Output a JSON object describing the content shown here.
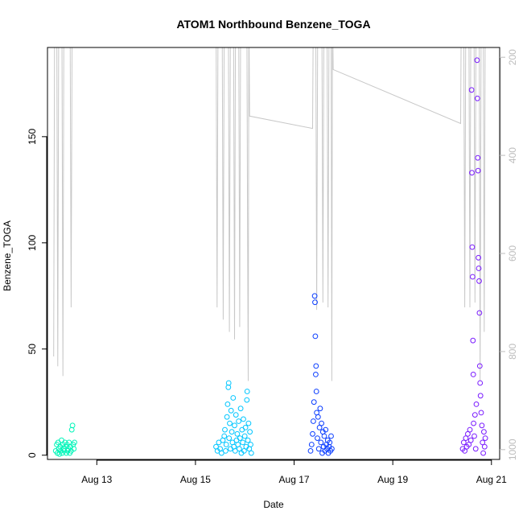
{
  "chart_data": {
    "type": "scatter",
    "title": "ATOM1 Northbound Benzene_TOGA",
    "xlabel": "Date",
    "ylabel": "Benzene_TOGA",
    "x_axis": {
      "ticks": [
        {
          "date": "2016-08-13",
          "label": "Aug 13"
        },
        {
          "date": "2016-08-15",
          "label": "Aug 15"
        },
        {
          "date": "2016-08-17",
          "label": "Aug 17"
        },
        {
          "date": "2016-08-19",
          "label": "Aug 19"
        },
        {
          "date": "2016-08-21",
          "label": "Aug 21"
        }
      ],
      "range": [
        "2016-08-12 00:00",
        "2016-08-21 04:00"
      ]
    },
    "y_axis": {
      "ticks": [
        0,
        50,
        100,
        150
      ],
      "range": [
        -2,
        192
      ]
    },
    "y2_axis": {
      "label": "",
      "ticks": [
        200,
        400,
        600,
        800,
        1000
      ],
      "range": [
        1020,
        180
      ],
      "color": "#bdbdbd",
      "reversed": true
    },
    "legend": "none",
    "grid": false,
    "colors": {
      "marker_gradient": [
        "#00f0b8",
        "#00b8ff",
        "#0030ff",
        "#8a00ff"
      ],
      "pressure_line": "#c8c8c8"
    },
    "series": [
      {
        "marker": "circle-open",
        "color": "#00f5b9",
        "points": [
          {
            "x": "2016-08-12 04:00",
            "y": 2
          },
          {
            "x": "2016-08-12 04:30",
            "y": 5
          },
          {
            "x": "2016-08-12 04:50",
            "y": 1
          },
          {
            "x": "2016-08-12 05:10",
            "y": 6
          },
          {
            "x": "2016-08-12 05:30",
            "y": 3
          },
          {
            "x": "2016-08-12 05:50",
            "y": 0.5
          },
          {
            "x": "2016-08-12 06:10",
            "y": 4
          },
          {
            "x": "2016-08-12 06:30",
            "y": 2
          },
          {
            "x": "2016-08-12 06:50",
            "y": 7
          },
          {
            "x": "2016-08-12 07:10",
            "y": 1
          },
          {
            "x": "2016-08-12 07:30",
            "y": 5
          },
          {
            "x": "2016-08-12 07:50",
            "y": 3
          },
          {
            "x": "2016-08-12 08:10",
            "y": 2
          },
          {
            "x": "2016-08-12 08:30",
            "y": 6
          },
          {
            "x": "2016-08-12 08:50",
            "y": 4
          },
          {
            "x": "2016-08-12 09:10",
            "y": 1
          },
          {
            "x": "2016-08-12 09:30",
            "y": 5
          },
          {
            "x": "2016-08-12 09:50",
            "y": 2
          },
          {
            "x": "2016-08-12 10:10",
            "y": 3
          },
          {
            "x": "2016-08-12 10:30",
            "y": 6
          },
          {
            "x": "2016-08-12 10:50",
            "y": 1
          },
          {
            "x": "2016-08-12 11:10",
            "y": 4
          },
          {
            "x": "2016-08-12 11:30",
            "y": 2
          },
          {
            "x": "2016-08-12 11:50",
            "y": 12
          },
          {
            "x": "2016-08-12 12:10",
            "y": 14
          },
          {
            "x": "2016-08-12 12:30",
            "y": 5
          },
          {
            "x": "2016-08-12 12:50",
            "y": 3
          },
          {
            "x": "2016-08-12 13:10",
            "y": 6
          }
        ]
      },
      {
        "marker": "circle-open",
        "color": "#00c6ff",
        "points": [
          {
            "x": "2016-08-15 10:00",
            "y": 4
          },
          {
            "x": "2016-08-15 10:40",
            "y": 2
          },
          {
            "x": "2016-08-15 11:20",
            "y": 6
          },
          {
            "x": "2016-08-15 12:00",
            "y": 3
          },
          {
            "x": "2016-08-15 12:40",
            "y": 1
          },
          {
            "x": "2016-08-15 13:20",
            "y": 7
          },
          {
            "x": "2016-08-15 14:00",
            "y": 9
          },
          {
            "x": "2016-08-15 14:20",
            "y": 12
          },
          {
            "x": "2016-08-15 14:40",
            "y": 2
          },
          {
            "x": "2016-08-15 15:00",
            "y": 5
          },
          {
            "x": "2016-08-15 15:20",
            "y": 18
          },
          {
            "x": "2016-08-15 15:40",
            "y": 24
          },
          {
            "x": "2016-08-15 16:00",
            "y": 32
          },
          {
            "x": "2016-08-15 16:10",
            "y": 34
          },
          {
            "x": "2016-08-15 16:20",
            "y": 8
          },
          {
            "x": "2016-08-15 16:40",
            "y": 15
          },
          {
            "x": "2016-08-15 17:00",
            "y": 3
          },
          {
            "x": "2016-08-15 17:20",
            "y": 21
          },
          {
            "x": "2016-08-15 17:40",
            "y": 11
          },
          {
            "x": "2016-08-15 18:00",
            "y": 6
          },
          {
            "x": "2016-08-15 18:20",
            "y": 27
          },
          {
            "x": "2016-08-15 18:40",
            "y": 4
          },
          {
            "x": "2016-08-15 19:00",
            "y": 14
          },
          {
            "x": "2016-08-15 19:20",
            "y": 2
          },
          {
            "x": "2016-08-15 19:40",
            "y": 19
          },
          {
            "x": "2016-08-15 20:00",
            "y": 7
          },
          {
            "x": "2016-08-15 20:20",
            "y": 10
          },
          {
            "x": "2016-08-15 20:40",
            "y": 5
          },
          {
            "x": "2016-08-15 21:00",
            "y": 16
          },
          {
            "x": "2016-08-15 21:20",
            "y": 3
          },
          {
            "x": "2016-08-15 21:40",
            "y": 8
          },
          {
            "x": "2016-08-15 22:00",
            "y": 22
          },
          {
            "x": "2016-08-15 22:20",
            "y": 1
          },
          {
            "x": "2016-08-15 22:40",
            "y": 12
          },
          {
            "x": "2016-08-15 23:00",
            "y": 6
          },
          {
            "x": "2016-08-15 23:20",
            "y": 17
          },
          {
            "x": "2016-08-15 23:40",
            "y": 2
          },
          {
            "x": "2016-08-16 00:00",
            "y": 9
          },
          {
            "x": "2016-08-16 00:20",
            "y": 13
          },
          {
            "x": "2016-08-16 00:40",
            "y": 4
          },
          {
            "x": "2016-08-16 01:00",
            "y": 26
          },
          {
            "x": "2016-08-16 01:10",
            "y": 30
          },
          {
            "x": "2016-08-16 01:30",
            "y": 7
          },
          {
            "x": "2016-08-16 01:50",
            "y": 15
          },
          {
            "x": "2016-08-16 02:10",
            "y": 3
          },
          {
            "x": "2016-08-16 02:30",
            "y": 11
          },
          {
            "x": "2016-08-16 02:50",
            "y": 5
          },
          {
            "x": "2016-08-16 03:10",
            "y": 1
          }
        ]
      },
      {
        "marker": "circle-open",
        "color": "#0a3dff",
        "points": [
          {
            "x": "2016-08-17 08:00",
            "y": 2
          },
          {
            "x": "2016-08-17 08:30",
            "y": 5
          },
          {
            "x": "2016-08-17 09:00",
            "y": 10
          },
          {
            "x": "2016-08-17 09:20",
            "y": 16
          },
          {
            "x": "2016-08-17 09:40",
            "y": 25
          },
          {
            "x": "2016-08-17 10:00",
            "y": 75
          },
          {
            "x": "2016-08-17 10:10",
            "y": 72
          },
          {
            "x": "2016-08-17 10:20",
            "y": 56
          },
          {
            "x": "2016-08-17 10:30",
            "y": 38
          },
          {
            "x": "2016-08-17 10:40",
            "y": 42
          },
          {
            "x": "2016-08-17 10:50",
            "y": 30
          },
          {
            "x": "2016-08-17 11:00",
            "y": 20
          },
          {
            "x": "2016-08-17 11:20",
            "y": 8
          },
          {
            "x": "2016-08-17 11:40",
            "y": 18
          },
          {
            "x": "2016-08-17 12:00",
            "y": 3
          },
          {
            "x": "2016-08-17 12:20",
            "y": 13
          },
          {
            "x": "2016-08-17 12:40",
            "y": 22
          },
          {
            "x": "2016-08-17 13:00",
            "y": 6
          },
          {
            "x": "2016-08-17 13:20",
            "y": 15
          },
          {
            "x": "2016-08-17 13:40",
            "y": 1
          },
          {
            "x": "2016-08-17 14:00",
            "y": 11
          },
          {
            "x": "2016-08-17 14:20",
            "y": 4
          },
          {
            "x": "2016-08-17 14:40",
            "y": 9
          },
          {
            "x": "2016-08-17 15:00",
            "y": 2
          },
          {
            "x": "2016-08-17 15:20",
            "y": 12
          },
          {
            "x": "2016-08-17 15:40",
            "y": 5
          },
          {
            "x": "2016-08-17 16:00",
            "y": 3
          },
          {
            "x": "2016-08-17 16:20",
            "y": 7
          },
          {
            "x": "2016-08-17 16:40",
            "y": 1
          },
          {
            "x": "2016-08-17 17:00",
            "y": 4
          },
          {
            "x": "2016-08-17 17:20",
            "y": 6
          },
          {
            "x": "2016-08-17 17:40",
            "y": 2
          },
          {
            "x": "2016-08-17 18:00",
            "y": 9
          },
          {
            "x": "2016-08-17 18:20",
            "y": 3
          }
        ]
      },
      {
        "marker": "circle-open",
        "color": "#7a1bff",
        "points": [
          {
            "x": "2016-08-20 10:00",
            "y": 3
          },
          {
            "x": "2016-08-20 10:30",
            "y": 6
          },
          {
            "x": "2016-08-20 11:00",
            "y": 2
          },
          {
            "x": "2016-08-20 11:30",
            "y": 8
          },
          {
            "x": "2016-08-20 12:00",
            "y": 4
          },
          {
            "x": "2016-08-20 12:30",
            "y": 10
          },
          {
            "x": "2016-08-20 13:00",
            "y": 5
          },
          {
            "x": "2016-08-20 13:30",
            "y": 12
          },
          {
            "x": "2016-08-20 14:00",
            "y": 7
          },
          {
            "x": "2016-08-20 14:20",
            "y": 172
          },
          {
            "x": "2016-08-20 14:30",
            "y": 133
          },
          {
            "x": "2016-08-20 14:40",
            "y": 98
          },
          {
            "x": "2016-08-20 14:50",
            "y": 84
          },
          {
            "x": "2016-08-20 15:00",
            "y": 54
          },
          {
            "x": "2016-08-20 15:10",
            "y": 38
          },
          {
            "x": "2016-08-20 15:20",
            "y": 15
          },
          {
            "x": "2016-08-20 15:40",
            "y": 9
          },
          {
            "x": "2016-08-20 16:00",
            "y": 19
          },
          {
            "x": "2016-08-20 16:20",
            "y": 3
          },
          {
            "x": "2016-08-20 16:40",
            "y": 24
          },
          {
            "x": "2016-08-20 17:00",
            "y": 186
          },
          {
            "x": "2016-08-20 17:10",
            "y": 168
          },
          {
            "x": "2016-08-20 17:20",
            "y": 140
          },
          {
            "x": "2016-08-20 17:30",
            "y": 134
          },
          {
            "x": "2016-08-20 17:40",
            "y": 93
          },
          {
            "x": "2016-08-20 17:50",
            "y": 88
          },
          {
            "x": "2016-08-20 18:00",
            "y": 82
          },
          {
            "x": "2016-08-20 18:10",
            "y": 67
          },
          {
            "x": "2016-08-20 18:20",
            "y": 42
          },
          {
            "x": "2016-08-20 18:30",
            "y": 34
          },
          {
            "x": "2016-08-20 18:40",
            "y": 28
          },
          {
            "x": "2016-08-20 19:00",
            "y": 20
          },
          {
            "x": "2016-08-20 19:20",
            "y": 14
          },
          {
            "x": "2016-08-20 19:40",
            "y": 6
          },
          {
            "x": "2016-08-20 20:00",
            "y": 1
          },
          {
            "x": "2016-08-20 20:20",
            "y": 11
          },
          {
            "x": "2016-08-20 20:40",
            "y": 4
          },
          {
            "x": "2016-08-20 21:00",
            "y": 8
          }
        ]
      },
      {
        "name": "",
        "type": "line",
        "axis": "y2",
        "color": "#c8c8c8",
        "points": [
          {
            "x": "2016-08-12 03:00",
            "y": 810
          },
          {
            "x": "2016-08-12 03:30",
            "y": 100
          },
          {
            "x": "2016-08-12 04:30",
            "y": 100
          },
          {
            "x": "2016-08-12 05:00",
            "y": 830
          },
          {
            "x": "2016-08-12 05:30",
            "y": 100
          },
          {
            "x": "2016-08-12 07:00",
            "y": 100
          },
          {
            "x": "2016-08-12 07:30",
            "y": 850
          },
          {
            "x": "2016-08-12 08:00",
            "y": 100
          },
          {
            "x": "2016-08-12 11:00",
            "y": 100
          },
          {
            "x": "2016-08-12 11:30",
            "y": 710
          },
          {
            "x": "2016-08-12 12:00",
            "y": 100
          },
          {
            "x": "2016-08-15 10:00",
            "y": 100
          },
          {
            "x": "2016-08-15 10:30",
            "y": 710
          },
          {
            "x": "2016-08-15 11:00",
            "y": 100
          },
          {
            "x": "2016-08-15 13:00",
            "y": 100
          },
          {
            "x": "2016-08-15 13:30",
            "y": 735
          },
          {
            "x": "2016-08-15 14:00",
            "y": 100
          },
          {
            "x": "2016-08-15 16:00",
            "y": 100
          },
          {
            "x": "2016-08-15 16:30",
            "y": 760
          },
          {
            "x": "2016-08-15 17:00",
            "y": 100
          },
          {
            "x": "2016-08-15 18:30",
            "y": 100
          },
          {
            "x": "2016-08-15 19:00",
            "y": 775
          },
          {
            "x": "2016-08-15 19:30",
            "y": 100
          },
          {
            "x": "2016-08-15 21:00",
            "y": 100
          },
          {
            "x": "2016-08-15 21:30",
            "y": 750
          },
          {
            "x": "2016-08-15 22:00",
            "y": 100
          },
          {
            "x": "2016-08-16 01:00",
            "y": 100
          },
          {
            "x": "2016-08-16 01:20",
            "y": 520
          },
          {
            "x": "2016-08-16 01:40",
            "y": 860
          },
          {
            "x": "2016-08-16 02:00",
            "y": 100
          },
          {
            "x": "2016-08-16 02:20",
            "y": 320
          },
          {
            "x": "2016-08-17 09:00",
            "y": 345
          },
          {
            "x": "2016-08-17 09:20",
            "y": 100
          },
          {
            "x": "2016-08-17 10:30",
            "y": 100
          },
          {
            "x": "2016-08-17 11:00",
            "y": 715
          },
          {
            "x": "2016-08-17 11:30",
            "y": 100
          },
          {
            "x": "2016-08-17 13:30",
            "y": 100
          },
          {
            "x": "2016-08-17 14:00",
            "y": 700
          },
          {
            "x": "2016-08-17 14:30",
            "y": 100
          },
          {
            "x": "2016-08-17 16:00",
            "y": 100
          },
          {
            "x": "2016-08-17 16:30",
            "y": 710
          },
          {
            "x": "2016-08-17 17:00",
            "y": 100
          },
          {
            "x": "2016-08-17 18:00",
            "y": 100
          },
          {
            "x": "2016-08-17 18:20",
            "y": 860
          },
          {
            "x": "2016-08-17 18:40",
            "y": 100
          },
          {
            "x": "2016-08-17 19:00",
            "y": 225
          },
          {
            "x": "2016-08-20 09:00",
            "y": 335
          },
          {
            "x": "2016-08-20 09:20",
            "y": 100
          },
          {
            "x": "2016-08-20 10:30",
            "y": 100
          },
          {
            "x": "2016-08-20 11:00",
            "y": 710
          },
          {
            "x": "2016-08-20 11:30",
            "y": 100
          },
          {
            "x": "2016-08-20 13:00",
            "y": 100
          },
          {
            "x": "2016-08-20 13:30",
            "y": 710
          },
          {
            "x": "2016-08-20 14:00",
            "y": 100
          },
          {
            "x": "2016-08-20 15:30",
            "y": 100
          },
          {
            "x": "2016-08-20 16:00",
            "y": 700
          },
          {
            "x": "2016-08-20 16:30",
            "y": 100
          },
          {
            "x": "2016-08-20 18:00",
            "y": 100
          },
          {
            "x": "2016-08-20 18:30",
            "y": 860
          },
          {
            "x": "2016-08-20 19:00",
            "y": 100
          },
          {
            "x": "2016-08-20 20:00",
            "y": 100
          },
          {
            "x": "2016-08-20 20:30",
            "y": 760
          },
          {
            "x": "2016-08-20 21:00",
            "y": 100
          }
        ]
      }
    ]
  }
}
